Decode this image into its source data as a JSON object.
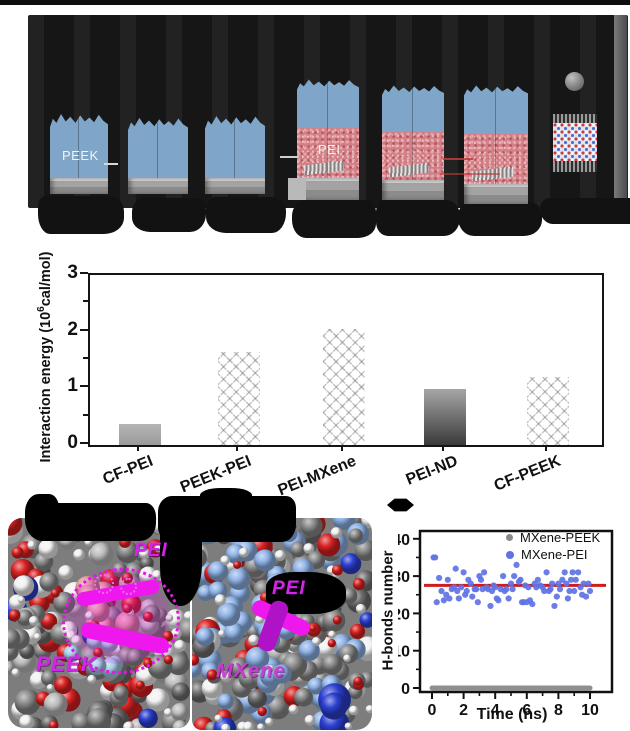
{
  "figure": {
    "top_panel": {
      "peek_label": "PEEK",
      "pei_label": "PEI",
      "description": "six molecular-dynamics simulation boxes (three PEEK-on-substrate, three PEEK/PEI-on-substrate), one crystal lattice slab and one gray atom sphere on black background"
    },
    "molecular": {
      "left": {
        "top_label": "PEI",
        "bottom_label": "PEEK"
      },
      "right": {
        "top_label": "PEI",
        "bottom_label": "MXene"
      },
      "atom_palette": {
        "carbon_gray": "#8a8a8a",
        "carbon_dark": "#6f6f6f",
        "hydrogen_white": "#f1f1f1",
        "oxygen_red": "#d92222",
        "nitrogen_blue": "#2b3fd0",
        "light_gray": "#bcbcbc",
        "mxene_lightblue": "#8fb3e6",
        "highlight_salmon": "#e29a9a",
        "highlight_lightblue": "#a7cde8",
        "annotation_magenta": "#e318e3"
      }
    }
  },
  "chart_data": [
    {
      "type": "bar",
      "title": "",
      "categories": [
        "CF-PEI",
        "PEEK-PEI",
        "PEI-MXene",
        "PEI-ND",
        "CF-PEEK"
      ],
      "values": [
        0.37,
        1.65,
        2.05,
        0.98,
        1.2
      ],
      "bar_colors": [
        "#a8a8a8",
        "#e4565e",
        "#7b8ce0",
        "#8c8c8c",
        "#e9df76"
      ],
      "bar_fade": [
        "none",
        "white-bottom",
        "white-bottom",
        "dark-bottom",
        "white-bottom"
      ],
      "hatch": "diamond-crosshatch",
      "xlabel": "",
      "ylabel": "Interaction energy (10^6 cal/mol)",
      "ylabel_parts": [
        "Interaction energy (10",
        "6",
        "cal/mol)"
      ],
      "ylim": [
        0,
        3
      ],
      "yticks": [
        0,
        1,
        2,
        3
      ],
      "grid": false,
      "frame": "box"
    },
    {
      "type": "scatter",
      "xlabel": "Time (ns)",
      "ylabel": "H-bonds number",
      "xlim": [
        -0.8,
        11
      ],
      "ylim": [
        -2,
        42
      ],
      "xticks": [
        0,
        2,
        4,
        6,
        8,
        10
      ],
      "yticks": [
        0,
        10,
        20,
        30,
        40
      ],
      "legend_position": "top-right-inside",
      "mean_line": {
        "value": 27.5,
        "color": "#cf1b1b"
      },
      "series": [
        {
          "name": "MXene-PEEK",
          "color": "#8a8a8a",
          "style": "constant-line-of-points",
          "constant_value": 0,
          "x_range": [
            0,
            10
          ]
        },
        {
          "name": "MXene-PEI",
          "color": "#5f73e3",
          "style": "points",
          "points": [
            [
              0.1,
              35
            ],
            [
              0.2,
              35
            ],
            [
              0.3,
              23
            ],
            [
              0.45,
              29.5
            ],
            [
              0.6,
              26
            ],
            [
              0.75,
              23.5
            ],
            [
              0.9,
              25
            ],
            [
              1.0,
              29
            ],
            [
              1.1,
              24
            ],
            [
              1.25,
              26.5
            ],
            [
              1.4,
              27
            ],
            [
              1.5,
              32
            ],
            [
              1.6,
              26
            ],
            [
              1.7,
              24
            ],
            [
              1.85,
              27
            ],
            [
              2.0,
              31
            ],
            [
              2.1,
              25
            ],
            [
              2.2,
              26
            ],
            [
              2.3,
              29
            ],
            [
              2.45,
              28
            ],
            [
              2.55,
              24.5
            ],
            [
              2.7,
              26.5
            ],
            [
              2.8,
              26.5
            ],
            [
              2.9,
              23
            ],
            [
              3.0,
              30
            ],
            [
              3.1,
              29
            ],
            [
              3.2,
              26.5
            ],
            [
              3.3,
              31
            ],
            [
              3.45,
              27
            ],
            [
              3.55,
              26.5
            ],
            [
              3.7,
              22
            ],
            [
              3.8,
              26
            ],
            [
              3.9,
              27.5
            ],
            [
              4.0,
              27
            ],
            [
              4.1,
              24
            ],
            [
              4.2,
              23.5
            ],
            [
              4.35,
              26.5
            ],
            [
              4.5,
              30
            ],
            [
              4.6,
              26
            ],
            [
              4.7,
              26.5
            ],
            [
              4.85,
              24
            ],
            [
              5.0,
              28
            ],
            [
              5.1,
              26.5
            ],
            [
              5.2,
              30
            ],
            [
              5.35,
              33
            ],
            [
              5.5,
              28.5
            ],
            [
              5.6,
              29
            ],
            [
              5.7,
              23
            ],
            [
              5.8,
              23
            ],
            [
              5.9,
              27.5
            ],
            [
              6.0,
              23
            ],
            [
              6.1,
              27
            ],
            [
              6.2,
              23.5
            ],
            [
              6.35,
              22.5
            ],
            [
              6.5,
              28
            ],
            [
              6.6,
              27
            ],
            [
              6.7,
              29
            ],
            [
              6.85,
              27.5
            ],
            [
              7.0,
              27
            ],
            [
              7.1,
              26
            ],
            [
              7.25,
              31
            ],
            [
              7.4,
              26
            ],
            [
              7.5,
              26.5
            ],
            [
              7.6,
              28
            ],
            [
              7.75,
              22
            ],
            [
              7.9,
              24.5
            ],
            [
              8.0,
              28
            ],
            [
              8.1,
              26.5
            ],
            [
              8.25,
              29
            ],
            [
              8.4,
              31
            ],
            [
              8.5,
              28
            ],
            [
              8.6,
              24
            ],
            [
              8.7,
              26
            ],
            [
              8.8,
              29
            ],
            [
              8.9,
              31
            ],
            [
              9.0,
              26
            ],
            [
              9.1,
              29
            ],
            [
              9.25,
              31
            ],
            [
              9.4,
              27
            ],
            [
              9.5,
              25
            ],
            [
              9.6,
              28
            ],
            [
              9.75,
              24.5
            ],
            [
              9.9,
              28
            ],
            [
              10.0,
              26
            ]
          ]
        }
      ]
    }
  ]
}
